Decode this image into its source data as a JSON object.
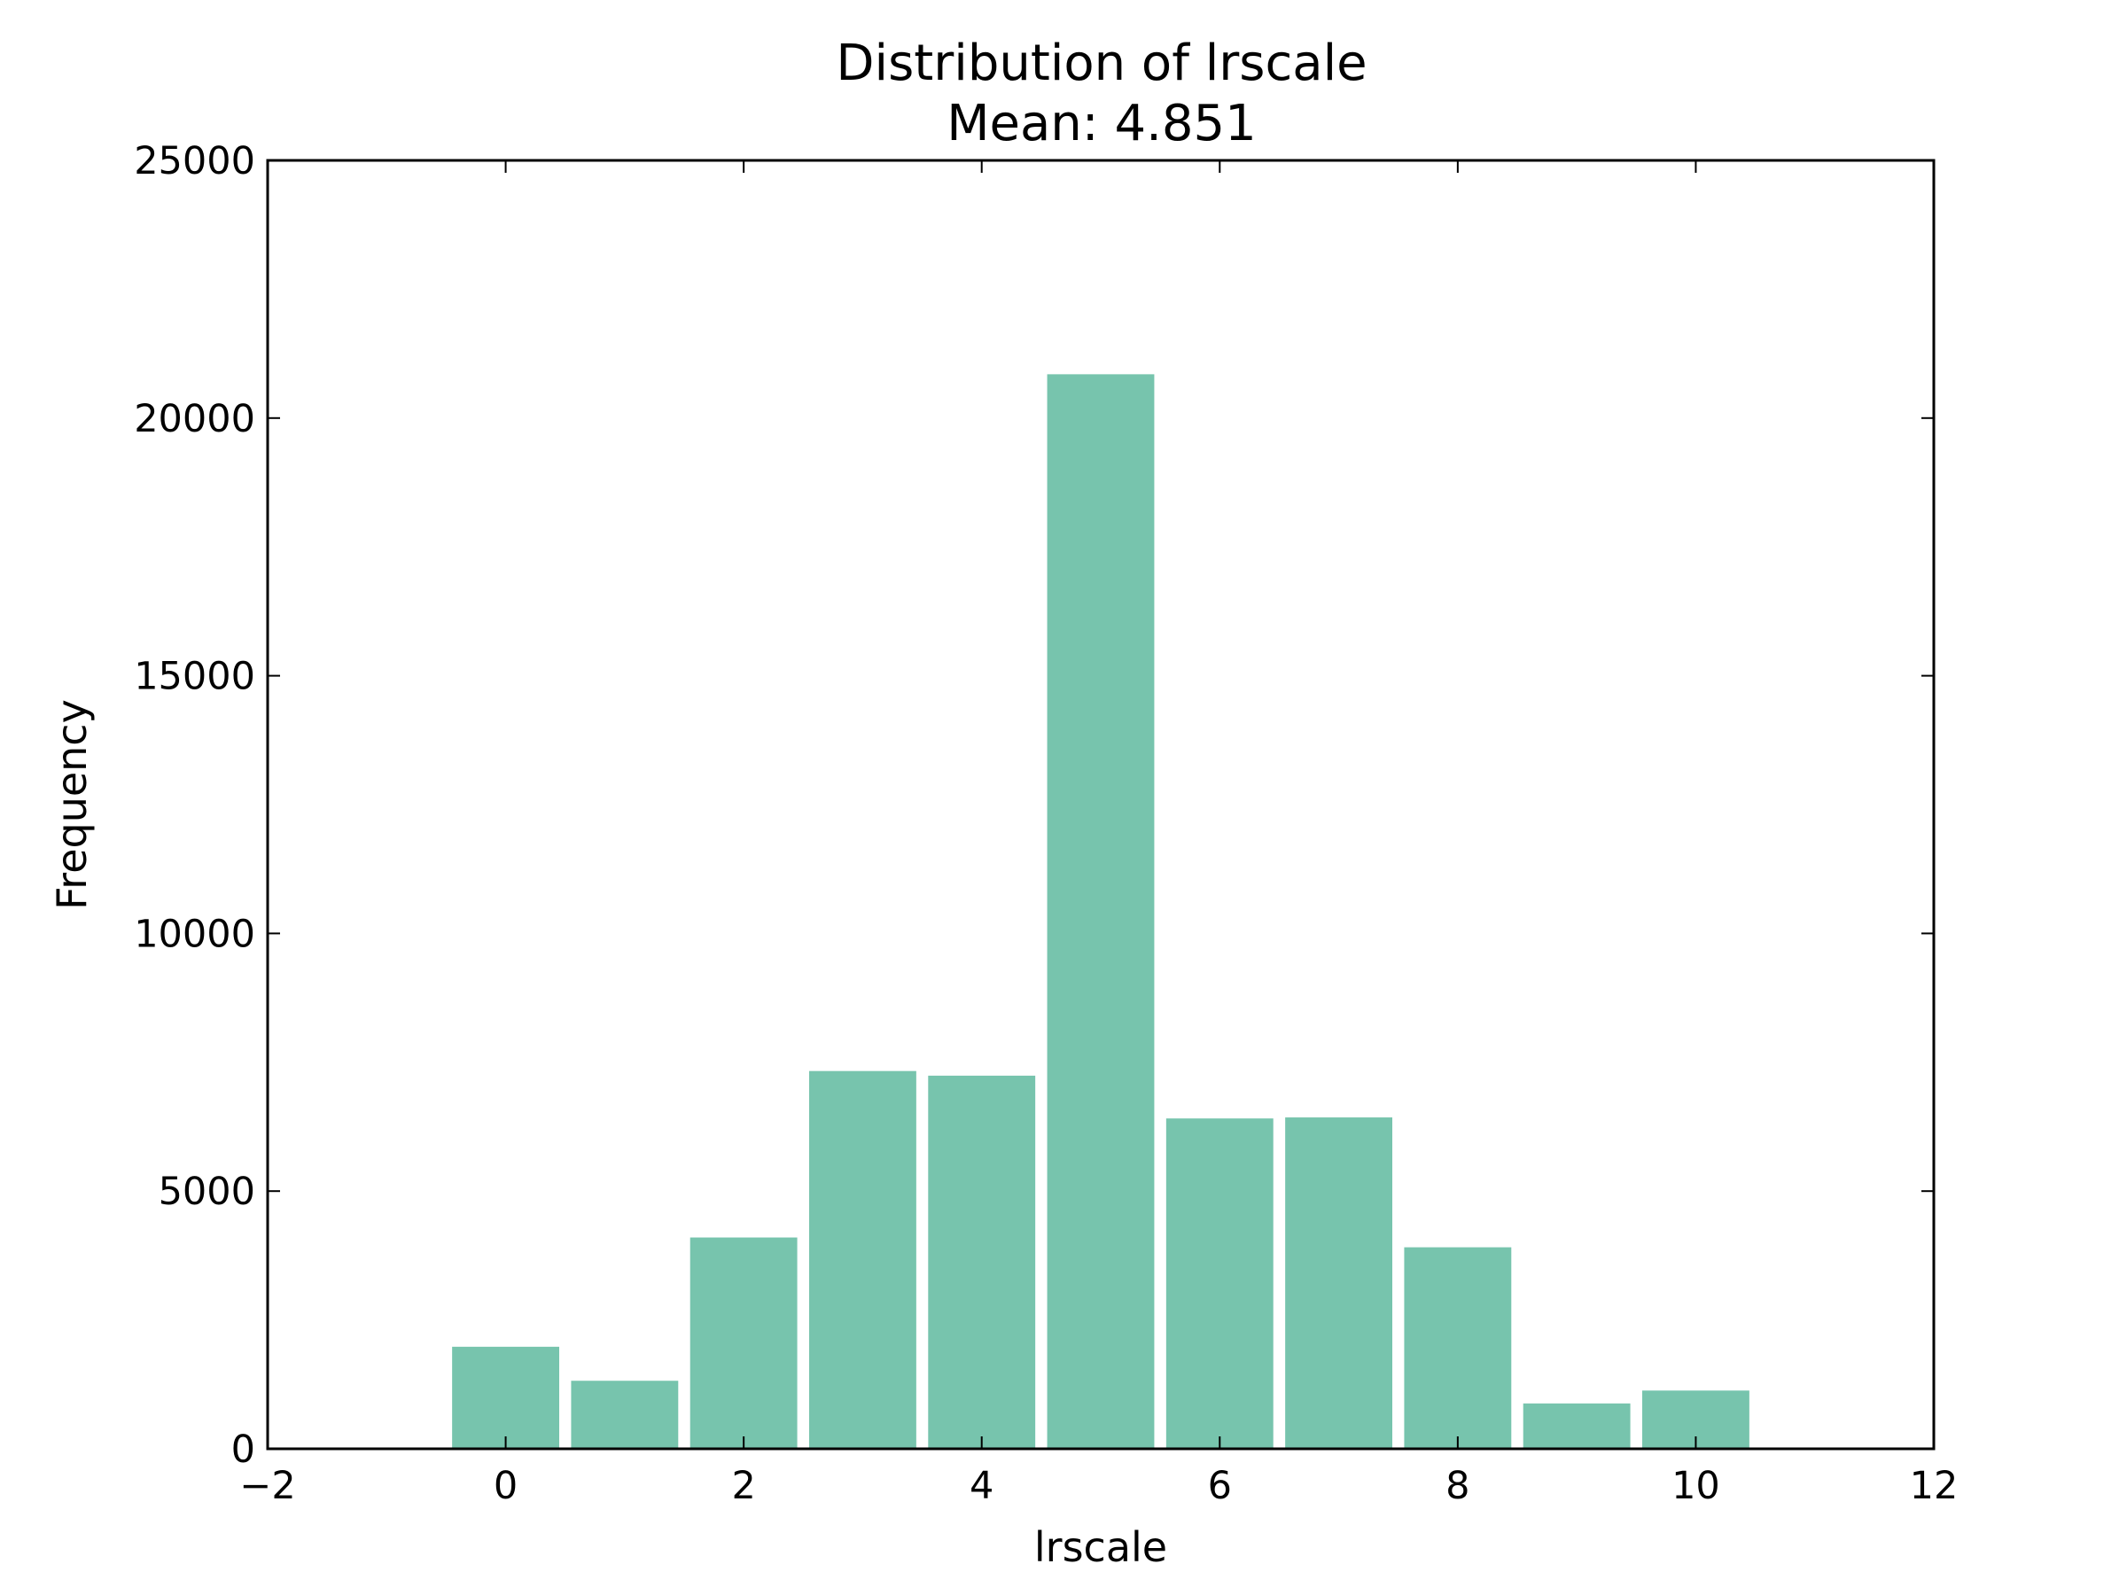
{
  "chart_data": {
    "type": "bar",
    "title": "Distribution of lrscale",
    "subtitle": "Mean: 4.851",
    "xlabel": "lrscale",
    "ylabel": "Frequency",
    "xlim": [
      -2,
      12
    ],
    "ylim": [
      0,
      25000
    ],
    "x_ticks": [
      -2,
      0,
      2,
      4,
      6,
      8,
      10,
      12
    ],
    "x_tick_labels": [
      "−2",
      "0",
      "2",
      "4",
      "6",
      "8",
      "10",
      "12"
    ],
    "y_ticks": [
      0,
      5000,
      10000,
      15000,
      20000,
      25000
    ],
    "y_tick_labels": [
      "0",
      "5000",
      "10000",
      "15000",
      "20000",
      "25000"
    ],
    "categories": [
      0,
      1,
      2,
      3,
      4,
      5,
      6,
      7,
      8,
      9,
      10
    ],
    "values": [
      1980,
      1320,
      4100,
      7330,
      7240,
      20850,
      6410,
      6430,
      3910,
      880,
      1130
    ],
    "bar_width": 0.9,
    "bar_color": "#77c4ad",
    "grid": false
  }
}
